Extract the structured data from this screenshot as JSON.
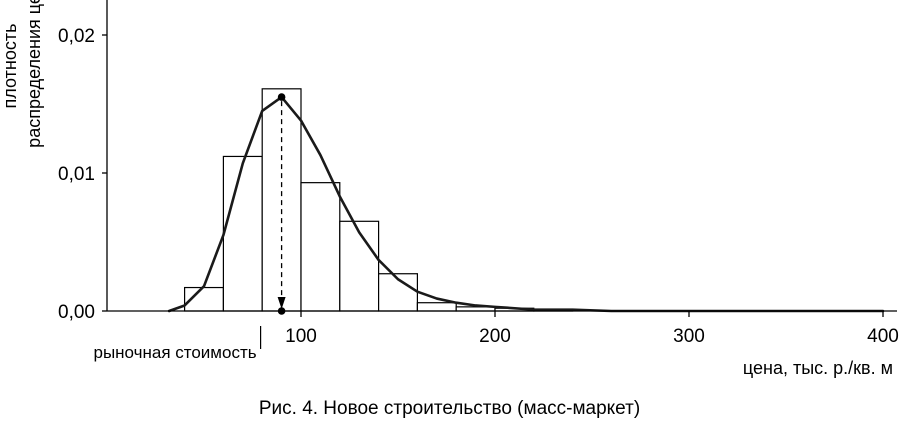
{
  "chart_data": {
    "type": "bar",
    "title": "",
    "xlabel": "цена, тыс. р./кв. м",
    "ylabel_lines": [
      "плотность",
      "распределения цен"
    ],
    "xlim": [
      0,
      410
    ],
    "ylim": [
      0,
      0.0225
    ],
    "x_ticks": [
      100,
      200,
      300,
      400
    ],
    "y_ticks": [
      0.0,
      0.01,
      0.02
    ],
    "y_tick_labels": [
      "0,00",
      "0,01",
      "0,02"
    ],
    "bin_width": 20,
    "bins": [
      {
        "start": 40,
        "value": 0.0017
      },
      {
        "start": 60,
        "value": 0.0112
      },
      {
        "start": 80,
        "value": 0.0161
      },
      {
        "start": 100,
        "value": 0.0093
      },
      {
        "start": 120,
        "value": 0.0065
      },
      {
        "start": 140,
        "value": 0.0027
      },
      {
        "start": 160,
        "value": 0.0006
      },
      {
        "start": 180,
        "value": 0.0003
      },
      {
        "start": 200,
        "value": 0.0002
      },
      {
        "start": 220,
        "value": 0.0001
      }
    ],
    "density_curve": {
      "x": [
        32,
        40,
        50,
        60,
        70,
        80,
        90,
        100,
        110,
        120,
        130,
        140,
        150,
        160,
        170,
        180,
        190,
        200,
        220,
        240,
        260,
        300,
        350,
        400
      ],
      "y": [
        0.0,
        0.0004,
        0.0018,
        0.0055,
        0.0107,
        0.0145,
        0.0155,
        0.0138,
        0.0113,
        0.0083,
        0.0057,
        0.0037,
        0.0023,
        0.0014,
        0.0009,
        0.0006,
        0.0004,
        0.0003,
        0.0001,
        0.0001,
        0.0,
        0.0,
        0.0,
        0.0
      ]
    },
    "market_value": {
      "x": 90,
      "y": 0.0155,
      "label": "рыночная стоимость"
    }
  },
  "caption": "Рис. 4. Новое строительство (масс-маркет)"
}
